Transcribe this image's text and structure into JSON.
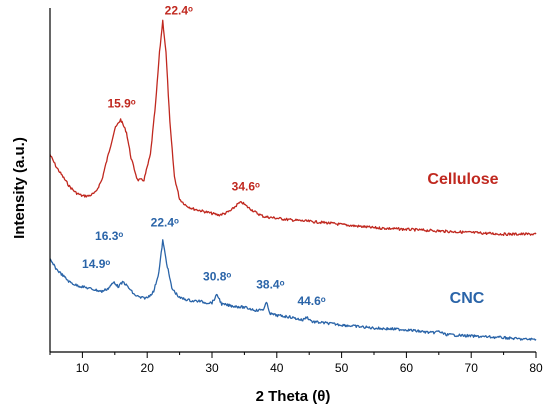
{
  "chart_data": {
    "type": "line",
    "title": "",
    "xlabel": "2 Theta (θ)",
    "ylabel": "Intensity (a.u.)",
    "xlim": [
      5,
      80
    ],
    "xticks": [
      10,
      20,
      30,
      40,
      50,
      60,
      70,
      80
    ],
    "y_ticks_shown": false,
    "grid": false,
    "series": [
      {
        "name": "Cellulose",
        "color": "#c0281f",
        "points": [
          [
            5,
            0.7
          ],
          [
            6,
            0.66
          ],
          [
            7,
            0.63
          ],
          [
            8,
            0.6
          ],
          [
            9,
            0.58
          ],
          [
            10,
            0.57
          ],
          [
            11,
            0.57
          ],
          [
            12,
            0.58
          ],
          [
            13,
            0.62
          ],
          [
            14,
            0.7
          ],
          [
            15,
            0.78
          ],
          [
            15.9,
            0.81
          ],
          [
            16.8,
            0.77
          ],
          [
            17.5,
            0.69
          ],
          [
            18.5,
            0.62
          ],
          [
            19.5,
            0.62
          ],
          [
            20.5,
            0.7
          ],
          [
            21.3,
            0.86
          ],
          [
            21.9,
            1.02
          ],
          [
            22.4,
            1.12
          ],
          [
            22.9,
            1.02
          ],
          [
            23.5,
            0.8
          ],
          [
            24.2,
            0.63
          ],
          [
            25,
            0.56
          ],
          [
            26,
            0.54
          ],
          [
            27,
            0.53
          ],
          [
            28,
            0.525
          ],
          [
            29,
            0.52
          ],
          [
            30,
            0.515
          ],
          [
            31,
            0.51
          ],
          [
            32,
            0.515
          ],
          [
            33,
            0.525
          ],
          [
            34,
            0.545
          ],
          [
            34.6,
            0.55
          ],
          [
            35.5,
            0.535
          ],
          [
            37,
            0.515
          ],
          [
            38,
            0.505
          ],
          [
            40,
            0.5
          ],
          [
            42,
            0.495
          ],
          [
            45,
            0.49
          ],
          [
            48,
            0.485
          ],
          [
            50,
            0.48
          ],
          [
            55,
            0.47
          ],
          [
            60,
            0.465
          ],
          [
            65,
            0.46
          ],
          [
            70,
            0.455
          ],
          [
            75,
            0.45
          ],
          [
            80,
            0.45
          ]
        ]
      },
      {
        "name": "CNC",
        "color": "#2a64a8",
        "points": [
          [
            5,
            0.37
          ],
          [
            6,
            0.34
          ],
          [
            7,
            0.32
          ],
          [
            8,
            0.3
          ],
          [
            9,
            0.29
          ],
          [
            10,
            0.285
          ],
          [
            11,
            0.28
          ],
          [
            12,
            0.275
          ],
          [
            13,
            0.27
          ],
          [
            14,
            0.28
          ],
          [
            14.9,
            0.3
          ],
          [
            15.5,
            0.285
          ],
          [
            16.3,
            0.3
          ],
          [
            17,
            0.285
          ],
          [
            18,
            0.26
          ],
          [
            19,
            0.25
          ],
          [
            20,
            0.25
          ],
          [
            21,
            0.27
          ],
          [
            21.8,
            0.33
          ],
          [
            22.4,
            0.43
          ],
          [
            23,
            0.36
          ],
          [
            23.8,
            0.28
          ],
          [
            25,
            0.25
          ],
          [
            26,
            0.245
          ],
          [
            27,
            0.24
          ],
          [
            28,
            0.24
          ],
          [
            29,
            0.235
          ],
          [
            30,
            0.235
          ],
          [
            30.8,
            0.26
          ],
          [
            31.5,
            0.23
          ],
          [
            33,
            0.225
          ],
          [
            35,
            0.22
          ],
          [
            36,
            0.215
          ],
          [
            37,
            0.21
          ],
          [
            38,
            0.215
          ],
          [
            38.4,
            0.235
          ],
          [
            39,
            0.2
          ],
          [
            40,
            0.195
          ],
          [
            42,
            0.19
          ],
          [
            44,
            0.18
          ],
          [
            44.6,
            0.19
          ],
          [
            45.5,
            0.175
          ],
          [
            48,
            0.17
          ],
          [
            50,
            0.165
          ],
          [
            55,
            0.155
          ],
          [
            60,
            0.15
          ],
          [
            64,
            0.14
          ],
          [
            65,
            0.145
          ],
          [
            66,
            0.135
          ],
          [
            70,
            0.13
          ],
          [
            75,
            0.125
          ],
          [
            78,
            0.12
          ],
          [
            80,
            0.12
          ]
        ]
      }
    ],
    "annotations": [
      {
        "series": "Cellulose",
        "text": "22.4ᵒ",
        "x": 22.4,
        "y": 1.12
      },
      {
        "series": "Cellulose",
        "text": "15.9ᵒ",
        "x": 15.9,
        "y": 0.81
      },
      {
        "series": "Cellulose",
        "text": "34.6ᵒ",
        "x": 34.6,
        "y": 0.55
      },
      {
        "series": "CNC",
        "text": "22.4ᵒ",
        "x": 22.4,
        "y": 0.43
      },
      {
        "series": "CNC",
        "text": "16.3ᵒ",
        "x": 16.3,
        "y": 0.3
      },
      {
        "series": "CNC",
        "text": "14.9ᵒ",
        "x": 14.9,
        "y": 0.3
      },
      {
        "series": "CNC",
        "text": "30.8ᵒ",
        "x": 30.8,
        "y": 0.26
      },
      {
        "series": "CNC",
        "text": "38.4ᵒ",
        "x": 38.4,
        "y": 0.235
      },
      {
        "series": "CNC",
        "text": "44.6ᵒ",
        "x": 44.6,
        "y": 0.19
      }
    ]
  }
}
